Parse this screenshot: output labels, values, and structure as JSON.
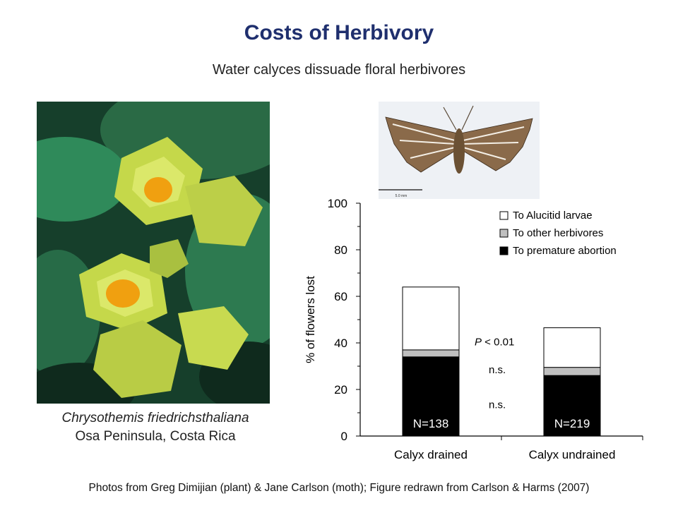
{
  "slide": {
    "title": "Costs of Herbivory",
    "subtitle": "Water calyces dissuade floral herbivores",
    "caption_species": "Chrysothemis friedrichsthaliana",
    "caption_location": "Osa Peninsula, Costa Rica",
    "footer": "Photos from Greg Dimijian (plant) & Jane Carlson (moth); Figure redrawn from Carlson & Harms (2007)",
    "moth_scale_label": "5.0 mm"
  },
  "colors": {
    "title": "#1f2f6e",
    "leaf_dark": "#1f5a3c",
    "leaf_mid": "#2f8a5a",
    "flower": "#c8d94a",
    "flower_center": "#f0a010"
  },
  "chart_data": {
    "type": "bar",
    "stacked": true,
    "categories": [
      "Calyx drained",
      "Calyx undrained"
    ],
    "series": [
      {
        "name": "To premature abortion",
        "color": "#000000",
        "values": [
          34,
          26
        ]
      },
      {
        "name": "To other herbivores",
        "color": "#bfbfbf",
        "values": [
          3,
          3.5
        ]
      },
      {
        "name": "To Alucitid larvae",
        "color": "#ffffff",
        "values": [
          27,
          17
        ]
      }
    ],
    "bar_labels": [
      "N=138",
      "N=219"
    ],
    "annotations": [
      "P < 0.01",
      "n.s.",
      "n.s."
    ],
    "ylabel": "% of flowers lost",
    "xlabel": "",
    "ylim": [
      0,
      100
    ],
    "yticks": [
      0,
      20,
      40,
      60,
      80,
      100
    ],
    "legend_position": "top-right"
  }
}
